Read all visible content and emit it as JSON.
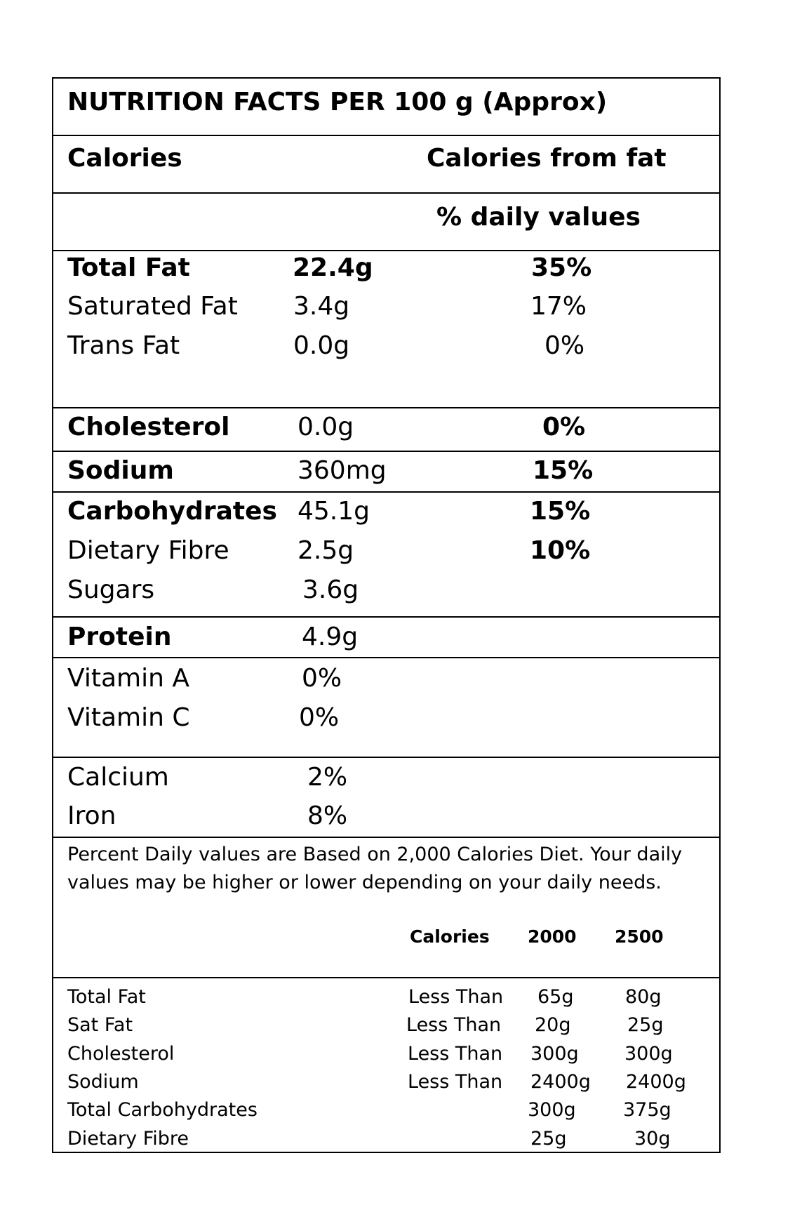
{
  "title": "NUTRITION FACTS PER 100 g (Approx)",
  "header": {
    "calories": "Calories",
    "calories_from_fat": "Calories from fat",
    "daily_values": "% daily values"
  },
  "nutrients": [
    {
      "name": "Total Fat",
      "amount": "22.4g",
      "dv": "35%"
    },
    {
      "name": "Saturated Fat",
      "amount": "3.4g",
      "dv": "17%"
    },
    {
      "name": "Trans Fat",
      "amount": "0.0g",
      "dv": "0%"
    },
    {
      "name": "Cholesterol",
      "amount": "0.0g",
      "dv": "0%"
    },
    {
      "name": "Sodium",
      "amount": "360mg",
      "dv": "15%"
    },
    {
      "name": "Carbohydrates",
      "amount": "45.1g",
      "dv": "15%"
    },
    {
      "name": "Dietary Fibre",
      "amount": "2.5g",
      "dv": "10%"
    },
    {
      "name": "Sugars",
      "amount": "3.6g",
      "dv": ""
    },
    {
      "name": "Protein",
      "amount": "4.9g",
      "dv": ""
    }
  ],
  "vitamins": [
    {
      "name": "Vitamin A",
      "value": "0%"
    },
    {
      "name": "Vitamin C",
      "value": "0%"
    },
    {
      "name": "Calcium",
      "value": "2%"
    },
    {
      "name": "Iron",
      "value": "8%"
    }
  ],
  "footnote": {
    "line1": "Percent Daily values are Based on 2,000 Calories Diet. Your daily",
    "line2": "values may be higher or lower depending on your daily needs."
  },
  "reference": {
    "headers": {
      "calories": "Calories",
      "c2000": "2000",
      "c2500": "2500"
    },
    "rows": [
      {
        "name": "Total Fat",
        "qualifier": "Less Than",
        "c2000": "65g",
        "c2500": "80g"
      },
      {
        "name": "Sat Fat",
        "qualifier": "Less Than",
        "c2000": "20g",
        "c2500": "25g"
      },
      {
        "name": "Cholesterol",
        "qualifier": "Less Than",
        "c2000": "300g",
        "c2500": "300g"
      },
      {
        "name": "Sodium",
        "qualifier": "Less Than",
        "c2000": "2400g",
        "c2500": "2400g"
      },
      {
        "name": "Total Carbohydrates",
        "qualifier": "",
        "c2000": "300g",
        "c2500": "375g"
      },
      {
        "name": "Dietary Fibre",
        "qualifier": "",
        "c2000": "25g",
        "c2500": "30g"
      }
    ]
  }
}
